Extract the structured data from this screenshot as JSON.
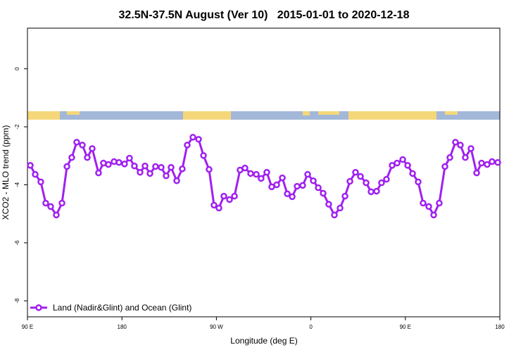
{
  "chart_data": {
    "type": "line",
    "title": "32.5N-37.5N August (Ver 10)   2015-01-01 to 2020-12-18",
    "x_label": "Longitude (deg E)",
    "y_label": "XCO2 - MLO trend (ppm)",
    "xlim": [
      90,
      540
    ],
    "ylim": [
      -8.55,
      1.4
    ],
    "xticks": [
      {
        "value": 90,
        "label": "90 E"
      },
      180,
      {
        "value": 270,
        "label": "90 W"
      },
      {
        "value": 360,
        "label": "0"
      },
      {
        "value": 450,
        "label": "90 E"
      },
      {
        "value": 540,
        "label": "180"
      }
    ],
    "yticks": [
      -8,
      -6,
      -4,
      -2,
      0
    ],
    "legend": "bottom-left",
    "series": [
      {
        "name": "Land (Nadir&Glint) and Ocean (Glint)",
        "color": "#a020f0",
        "x": [
          92.7,
          97.4,
          102.7,
          107.4,
          112.1,
          117.5,
          122.9,
          127.6,
          132.2,
          136.9,
          142.3,
          147.0,
          151.7,
          157.7,
          162.4,
          167.1,
          172.5,
          177.2,
          182.5,
          187.2,
          191.9,
          197.3,
          202.0,
          206.7,
          212.0,
          217.4,
          222.1,
          226.8,
          232.2,
          237.5,
          242.2,
          247.6,
          253.0,
          257.7,
          263.0,
          267.7,
          272.4,
          277.1,
          282.5,
          287.2,
          292.5,
          297.2,
          302.6,
          308.0,
          312.6,
          318.0,
          322.7,
          327.4,
          332.8,
          337.5,
          342.2,
          346.9,
          352.2,
          356.9,
          362.3,
          367.0,
          371.7,
          377.0,
          382.4,
          387.8,
          392.5,
          397.2,
          402.5,
          407.2,
          412.6,
          417.3,
          422.6,
          427.3,
          432.0,
          437.4,
          442.1,
          447.5,
          452.2,
          456.9,
          462.2,
          466.9,
          472.3,
          477.0,
          482.3,
          487.7,
          492.4,
          497.7,
          502.4,
          507.1,
          512.5,
          517.9,
          522.6,
          527.9,
          532.6,
          538.0
        ],
        "values": [
          -3.33,
          -3.64,
          -3.9,
          -4.63,
          -4.75,
          -5.04,
          -4.63,
          -3.37,
          -3.06,
          -2.53,
          -2.63,
          -3.06,
          -2.75,
          -3.59,
          -3.25,
          -3.3,
          -3.2,
          -3.23,
          -3.28,
          -3.08,
          -3.35,
          -3.57,
          -3.35,
          -3.61,
          -3.37,
          -3.4,
          -3.69,
          -3.4,
          -3.86,
          -3.45,
          -2.63,
          -2.36,
          -2.43,
          -2.99,
          -3.47,
          -4.7,
          -4.8,
          -4.39,
          -4.51,
          -4.39,
          -3.49,
          -3.42,
          -3.61,
          -3.64,
          -3.78,
          -3.57,
          -4.07,
          -4.0,
          -3.76,
          -4.31,
          -4.41,
          -4.05,
          -4.02,
          -3.64,
          -3.86,
          -4.1,
          -4.29,
          -4.67,
          -5.04,
          -4.8,
          -4.39,
          -3.88,
          -3.57,
          -3.71,
          -3.93,
          -4.24,
          -4.22,
          -3.93,
          -3.81,
          -3.33,
          -3.25,
          -3.13,
          -3.33,
          -3.61,
          -3.9,
          -4.63,
          -4.75,
          -5.04,
          -4.63,
          -3.37,
          -3.06,
          -2.53,
          -2.63,
          -3.06,
          -2.75,
          -3.59,
          -3.25,
          -3.3,
          -3.2,
          -3.23
        ]
      }
    ]
  }
}
